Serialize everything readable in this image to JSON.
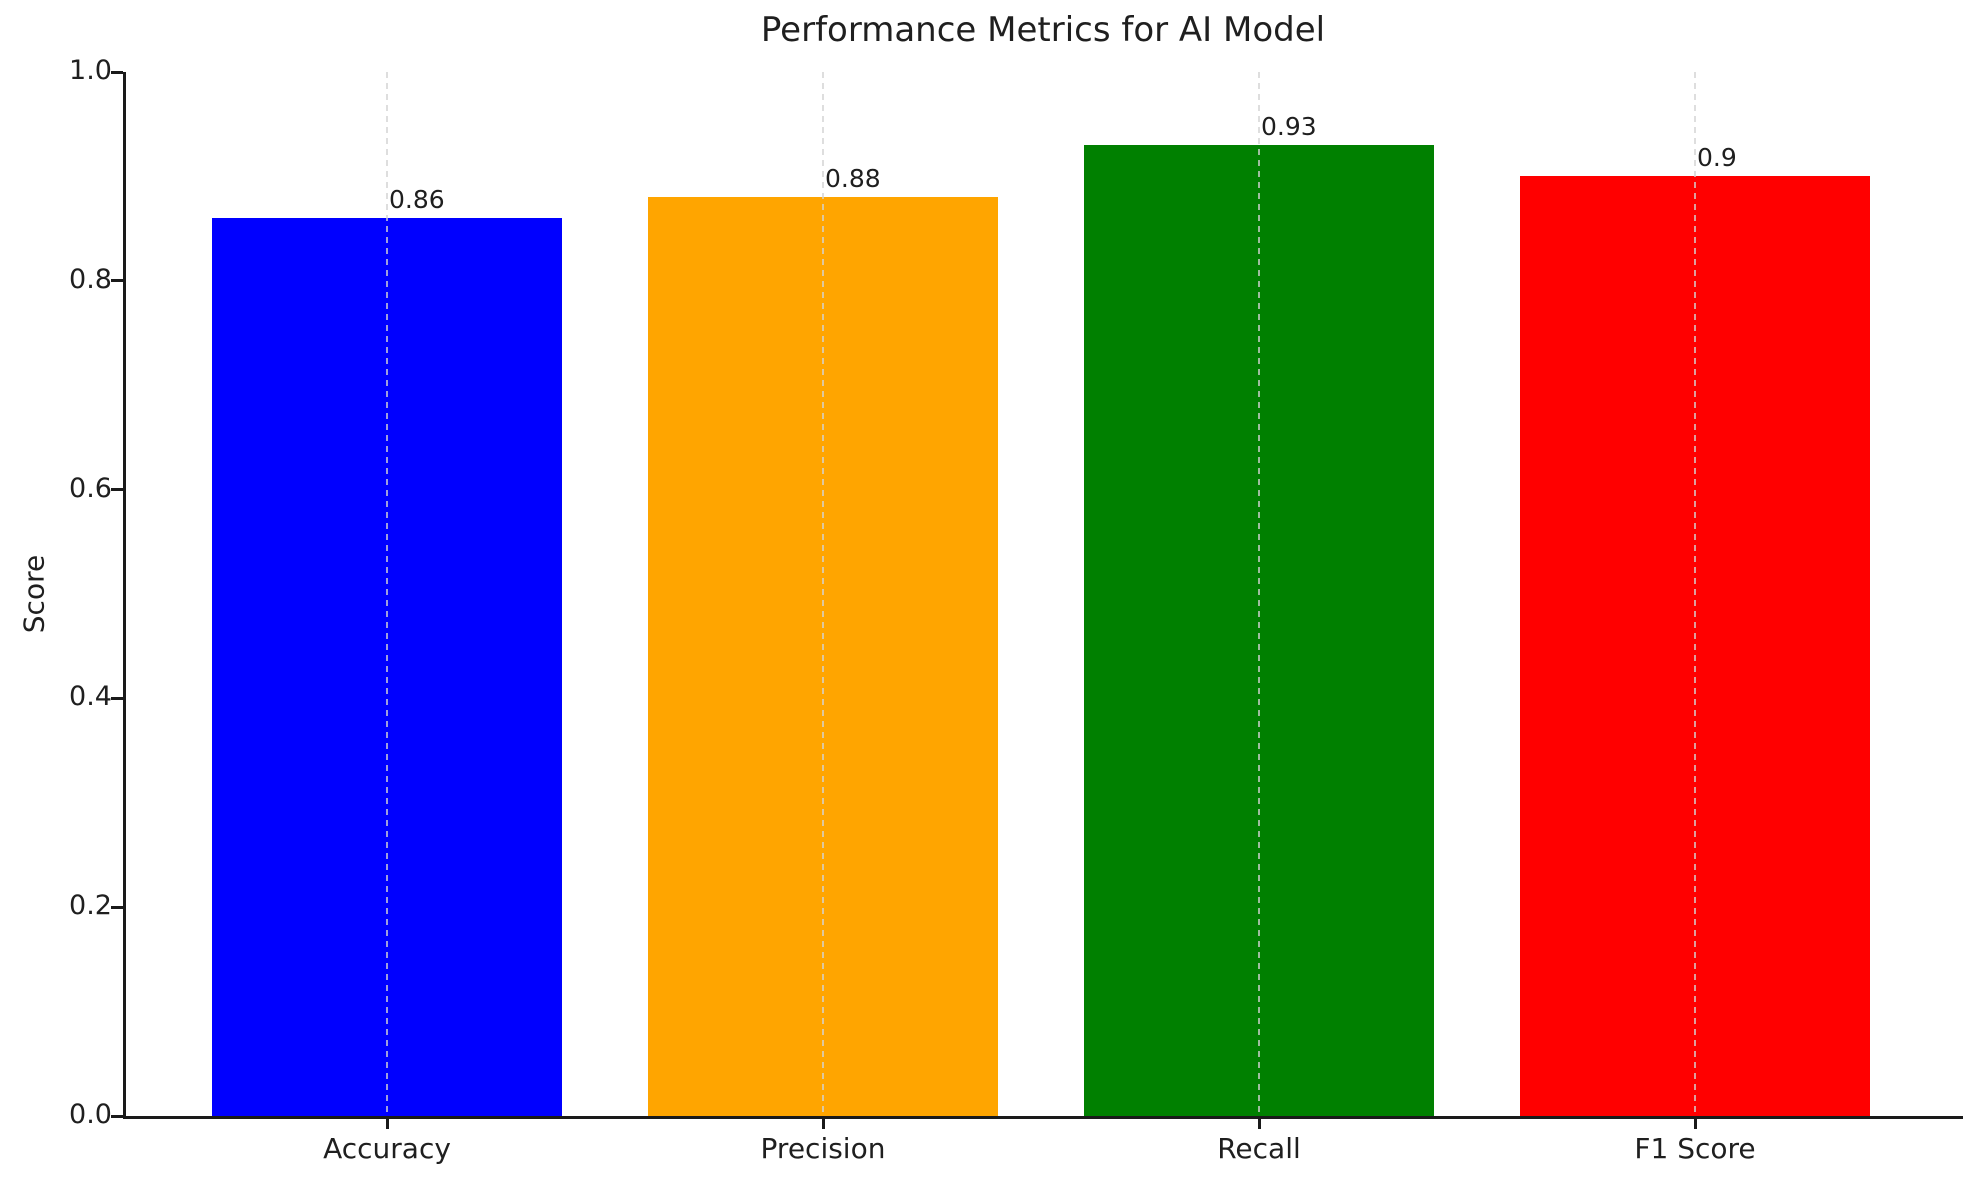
{
  "figure": {
    "background": "#ffffff"
  },
  "chart_data": {
    "type": "bar",
    "title": "Performance Metrics for AI Model",
    "xlabel": "",
    "ylabel": "Score",
    "categories": [
      "Accuracy",
      "Precision",
      "Recall",
      "F1 Score"
    ],
    "values": [
      0.86,
      0.88,
      0.93,
      0.9
    ],
    "value_labels": [
      "0.86",
      "0.88",
      "0.93",
      "0.9"
    ],
    "bar_colors": [
      "#0000ff",
      "#ffa500",
      "#008000",
      "#ff0000"
    ],
    "ylim": [
      0.0,
      1.0
    ],
    "yticks": [
      "0.0",
      "0.2",
      "0.4",
      "0.6",
      "0.8",
      "1.0"
    ],
    "grid": {
      "axis": "x",
      "style": "dashed",
      "color": "#d3d3d3",
      "alpha": 0.75,
      "drawn_over_bars": true
    },
    "legend_position": "none",
    "text_color": "#1f1f1f",
    "spine_color": "#1a1a1a"
  }
}
